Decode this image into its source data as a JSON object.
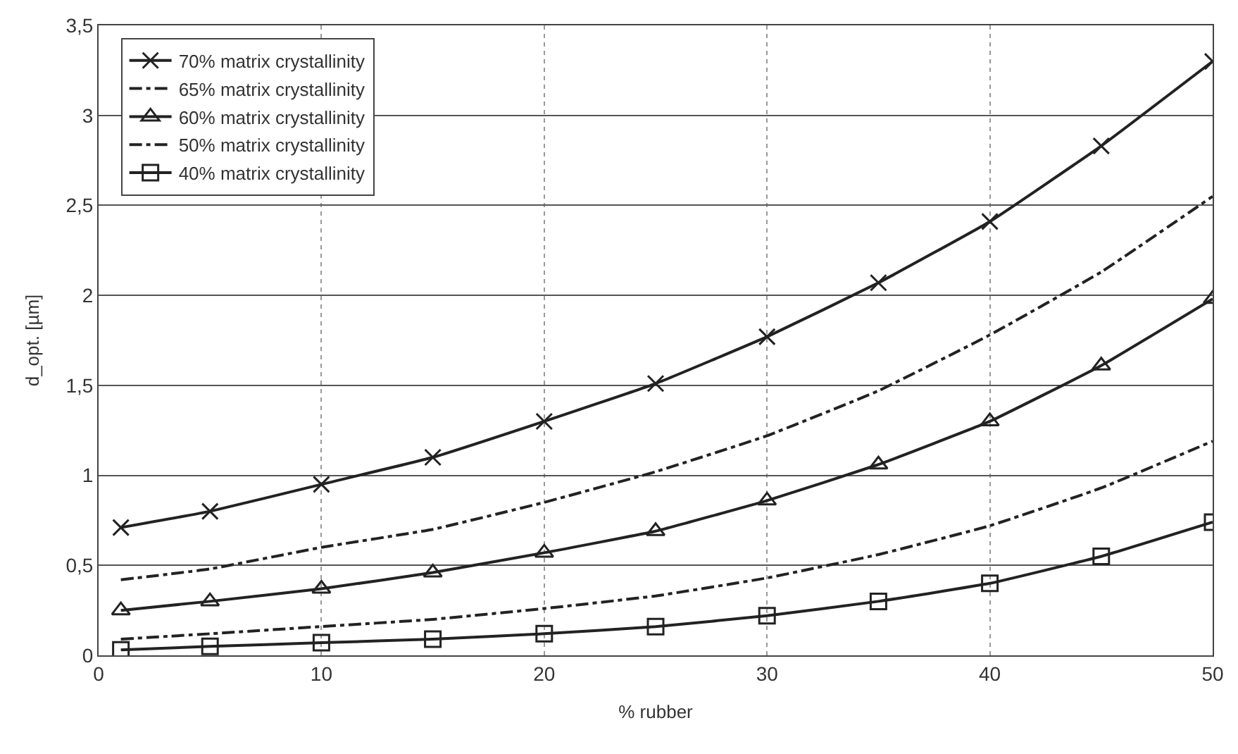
{
  "chart_data": {
    "type": "line",
    "xlabel": "% rubber",
    "ylabel": "d_opt. [µm]",
    "x": [
      1,
      5,
      10,
      15,
      20,
      25,
      30,
      35,
      40,
      45,
      50
    ],
    "series": [
      {
        "name": "70% matrix crystallinity",
        "color": "#222222",
        "marker": "cross",
        "line_style": "solid",
        "values": [
          0.71,
          0.8,
          0.95,
          1.1,
          1.3,
          1.51,
          1.77,
          2.07,
          2.41,
          2.83,
          3.3
        ]
      },
      {
        "name": "65% matrix crystallinity",
        "color": "#222222",
        "marker": "none",
        "line_style": "dashed",
        "values": [
          0.42,
          0.48,
          0.6,
          0.7,
          0.85,
          1.02,
          1.22,
          1.47,
          1.78,
          2.13,
          2.55
        ]
      },
      {
        "name": "60% matrix crystallinity",
        "color": "#222222",
        "marker": "triangle",
        "line_style": "solid",
        "values": [
          0.25,
          0.3,
          0.37,
          0.46,
          0.57,
          0.69,
          0.86,
          1.06,
          1.3,
          1.61,
          1.98
        ]
      },
      {
        "name": "50% matrix crystallinity",
        "color": "#222222",
        "marker": "none",
        "line_style": "dashed",
        "values": [
          0.09,
          0.12,
          0.16,
          0.2,
          0.26,
          0.33,
          0.43,
          0.56,
          0.72,
          0.93,
          1.19
        ]
      },
      {
        "name": "40% matrix crystallinity",
        "color": "#222222",
        "marker": "square",
        "line_style": "solid",
        "values": [
          0.03,
          0.05,
          0.07,
          0.09,
          0.12,
          0.16,
          0.22,
          0.3,
          0.4,
          0.55,
          0.74
        ]
      }
    ],
    "xlim": [
      0,
      50
    ],
    "xticks": [
      0,
      10,
      20,
      30,
      40,
      50
    ],
    "ylim": [
      0,
      3.5
    ],
    "yticks": [
      0,
      {
        "value": 0.5,
        "label": "0,5"
      },
      1,
      {
        "value": 1.5,
        "label": "1,5"
      },
      2,
      {
        "value": 2.5,
        "label": "2,5"
      },
      3,
      {
        "value": 3.5,
        "label": "3,5"
      }
    ],
    "grid": true,
    "legend": "top left"
  }
}
